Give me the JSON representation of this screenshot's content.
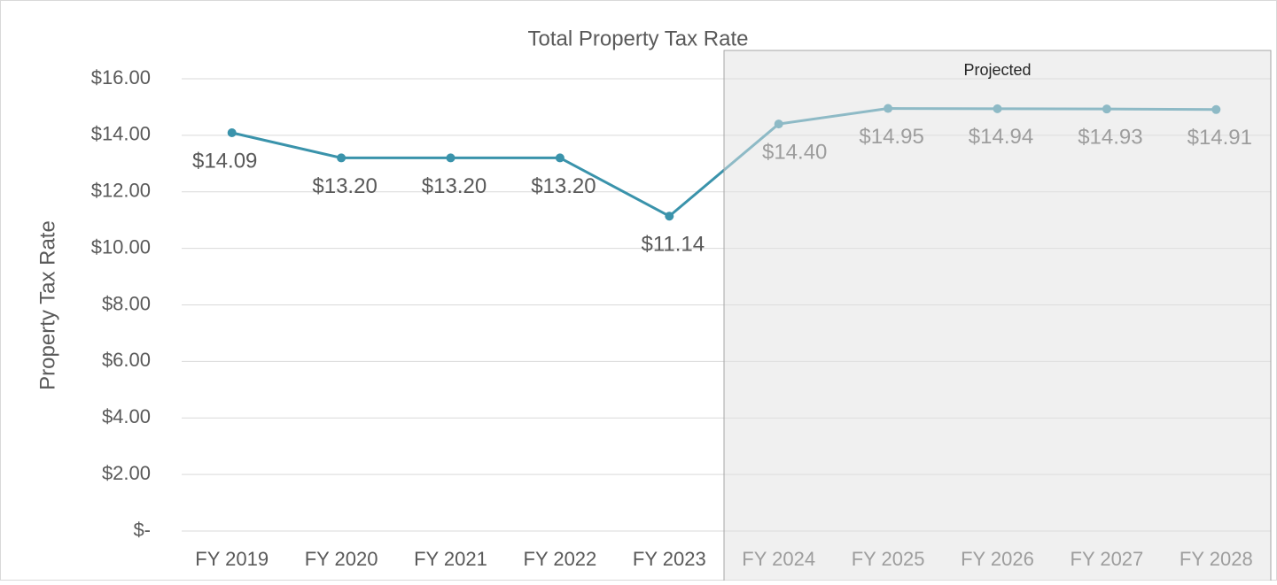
{
  "chart_data": {
    "type": "line",
    "title": "Total Property Tax Rate",
    "y_label": "Property Tax Rate",
    "annotation": "Projected",
    "categories": [
      "FY 2019",
      "FY 2020",
      "FY 2021",
      "FY 2022",
      "FY 2023",
      "FY 2024",
      "FY 2025",
      "FY 2026",
      "FY 2027",
      "FY 2028"
    ],
    "series": [
      {
        "name": "Total Property Tax Rate",
        "color": "#3a93ab",
        "values": [
          14.09,
          13.2,
          13.2,
          13.2,
          11.14,
          14.4,
          14.95,
          14.94,
          14.93,
          14.91
        ],
        "value_labels": [
          "$14.09",
          "$13.20",
          "$13.20",
          "$13.20",
          "$11.14",
          "$14.40",
          "$14.95",
          "$14.94",
          "$14.93",
          "$14.91"
        ]
      }
    ],
    "ylim": [
      0,
      16
    ],
    "yticks": [
      {
        "value": 0,
        "label": "$-"
      },
      {
        "value": 2,
        "label": "$2.00"
      },
      {
        "value": 4,
        "label": "$4.00"
      },
      {
        "value": 6,
        "label": "$6.00"
      },
      {
        "value": 8,
        "label": "$8.00"
      },
      {
        "value": 10,
        "label": "$10.00"
      },
      {
        "value": 12,
        "label": "$12.00"
      },
      {
        "value": 14,
        "label": "$14.00"
      },
      {
        "value": 16,
        "label": "$16.00"
      }
    ],
    "grid": true
  }
}
